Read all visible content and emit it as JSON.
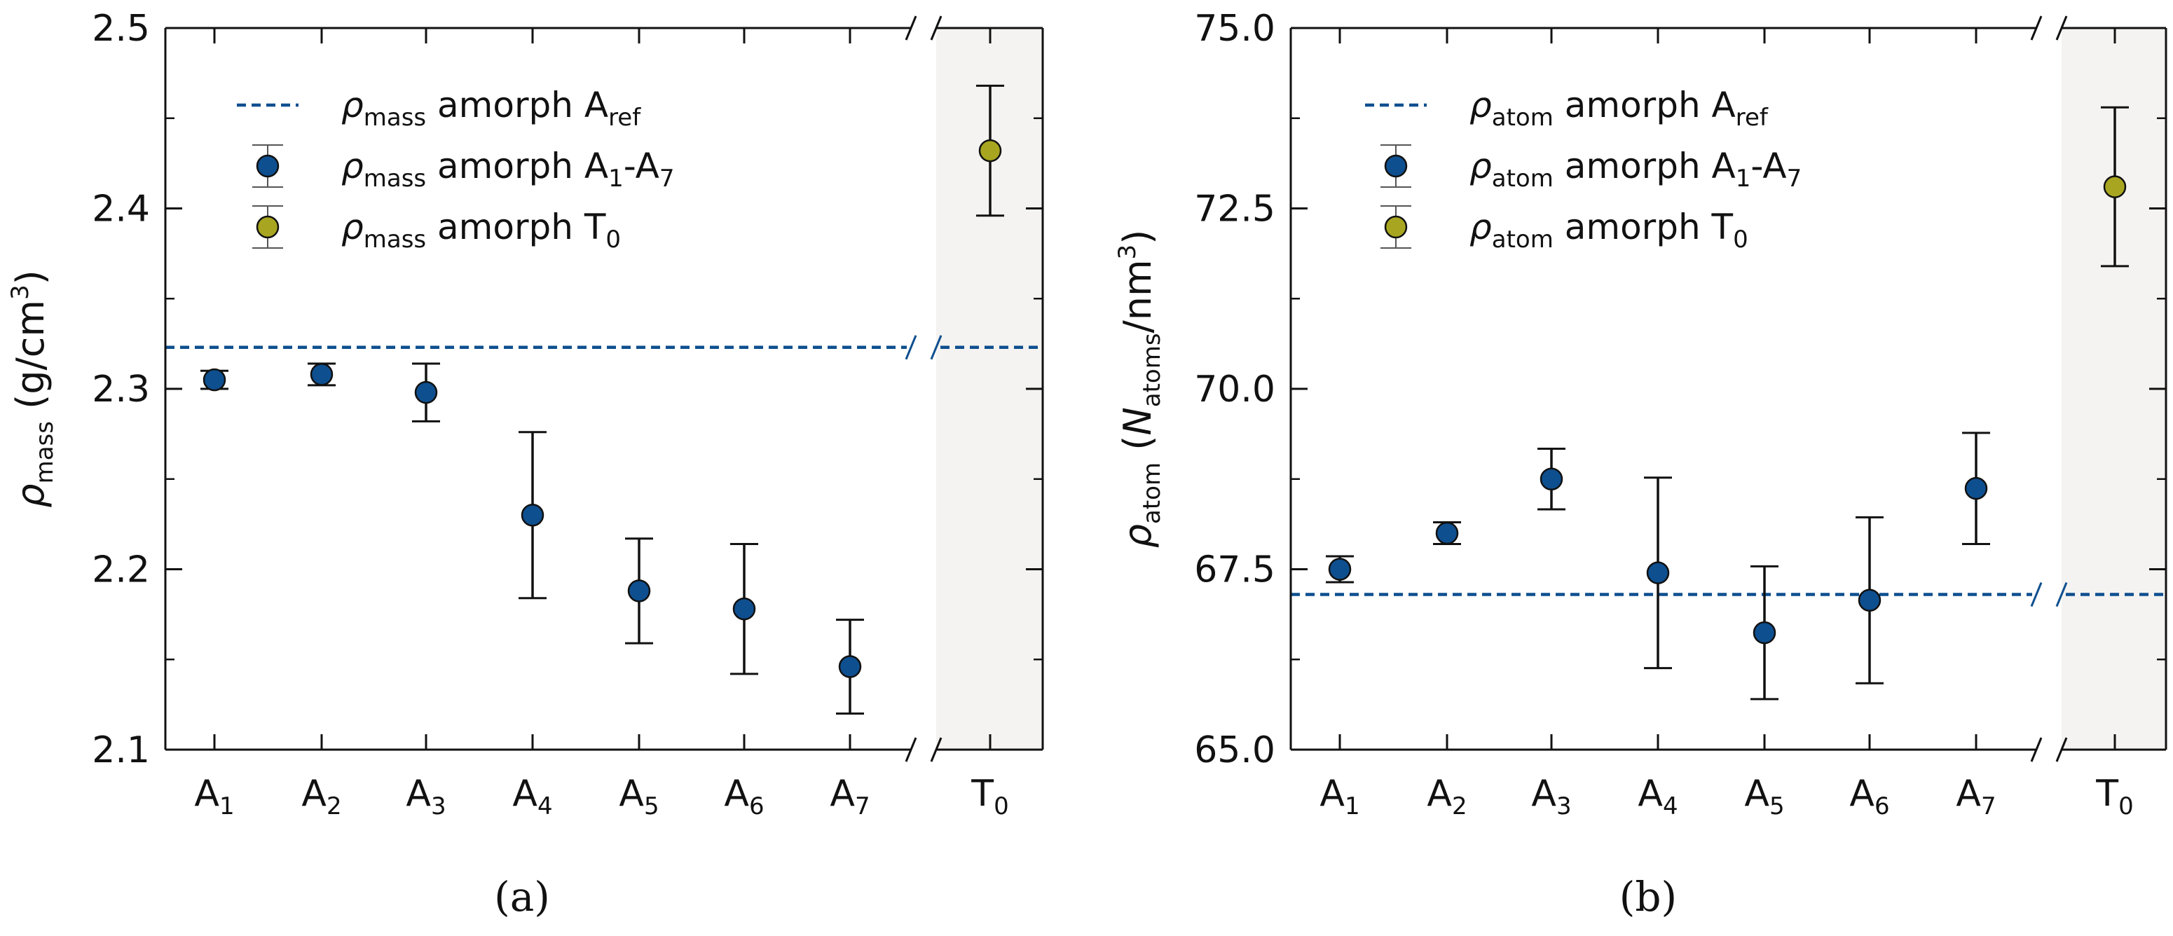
{
  "colors": {
    "series": "#0e4f8f",
    "t0": "#a8a620",
    "refline": "#0e4f8f",
    "shade": "#f4f3f1",
    "axis": "#111111",
    "errorbar": "#111111"
  },
  "chart_data": [
    {
      "type": "scatter",
      "panel": "a",
      "caption": "(a)",
      "ylabel": "ρmass (g/cm3)",
      "ylabel_parts": {
        "sym": "ρ",
        "sub": "mass",
        "unit_pre": " (g/cm",
        "sup": "3",
        "unit_post": ")"
      },
      "ylim": [
        2.1,
        2.5
      ],
      "yticks": [
        "2.1",
        "2.2",
        "2.3",
        "2.4",
        "2.5"
      ],
      "ytick_values": [
        2.1,
        2.2,
        2.3,
        2.4,
        2.5
      ],
      "categories": [
        "A1",
        "A2",
        "A3",
        "A4",
        "A5",
        "A6",
        "A7",
        "T0"
      ],
      "category_parts": [
        [
          "A",
          "1"
        ],
        [
          "A",
          "2"
        ],
        [
          "A",
          "3"
        ],
        [
          "A",
          "4"
        ],
        [
          "A",
          "5"
        ],
        [
          "A",
          "6"
        ],
        [
          "A",
          "7"
        ],
        [
          "T",
          "0"
        ]
      ],
      "series": [
        {
          "name": "ρmass amorph A1-A7",
          "x": [
            "A1",
            "A2",
            "A3",
            "A4",
            "A5",
            "A6",
            "A7"
          ],
          "values": [
            2.305,
            2.308,
            2.298,
            2.23,
            2.188,
            2.178,
            2.146
          ],
          "errors": [
            0.005,
            0.006,
            0.016,
            0.046,
            0.029,
            0.036,
            0.026
          ]
        },
        {
          "name": "ρmass amorph T0",
          "x": [
            "T0"
          ],
          "values": [
            2.432
          ],
          "errors": [
            0.036
          ]
        }
      ],
      "reference": {
        "name": "ρmass amorph Aref",
        "value": 2.323
      },
      "legend": {
        "location": "top-left",
        "entries": [
          {
            "kind": "line",
            "sym": "ρ",
            "sub": "mass",
            "text": " amorph A",
            "tsub": "ref"
          },
          {
            "kind": "point-blue",
            "sym": "ρ",
            "sub": "mass",
            "text": " amorph A",
            "tsub": "1",
            "text2": "-A",
            "tsub2": "7"
          },
          {
            "kind": "point-green",
            "sym": "ρ",
            "sub": "mass",
            "text": " amorph T",
            "tsub": "0"
          }
        ]
      }
    },
    {
      "type": "scatter",
      "panel": "b",
      "caption": "(b)",
      "ylabel": "ρatom (Natoms/nm3)",
      "ylabel_parts": {
        "sym": "ρ",
        "sub": "atom",
        "unit_pre": " (",
        "n": "N",
        "nsub": "atoms",
        "unit_mid": "/nm",
        "sup": "3",
        "unit_post": ")"
      },
      "ylim": [
        65.0,
        75.0
      ],
      "yticks": [
        "65.0",
        "67.5",
        "70.0",
        "72.5",
        "75.0"
      ],
      "ytick_values": [
        65.0,
        67.5,
        70.0,
        72.5,
        75.0
      ],
      "categories": [
        "A1",
        "A2",
        "A3",
        "A4",
        "A5",
        "A6",
        "A7",
        "T0"
      ],
      "category_parts": [
        [
          "A",
          "1"
        ],
        [
          "A",
          "2"
        ],
        [
          "A",
          "3"
        ],
        [
          "A",
          "4"
        ],
        [
          "A",
          "5"
        ],
        [
          "A",
          "6"
        ],
        [
          "A",
          "7"
        ],
        [
          "T",
          "0"
        ]
      ],
      "series": [
        {
          "name": "ρatom amorph A1-A7",
          "x": [
            "A1",
            "A2",
            "A3",
            "A4",
            "A5",
            "A6",
            "A7"
          ],
          "values": [
            67.5,
            68.0,
            68.75,
            67.45,
            66.62,
            67.07,
            68.62
          ],
          "errors": [
            0.18,
            0.15,
            0.42,
            1.32,
            0.92,
            1.15,
            0.77
          ]
        },
        {
          "name": "ρatom amorph T0",
          "x": [
            "T0"
          ],
          "values": [
            72.8
          ],
          "errors": [
            1.1
          ]
        }
      ],
      "reference": {
        "name": "ρatom amorph Aref",
        "value": 67.15
      },
      "legend": {
        "location": "top-left",
        "entries": [
          {
            "kind": "line",
            "sym": "ρ",
            "sub": "atom",
            "text": " amorph A",
            "tsub": "ref"
          },
          {
            "kind": "point-blue",
            "sym": "ρ",
            "sub": "atom",
            "text": " amorph A",
            "tsub": "1",
            "text2": "-A",
            "tsub2": "7"
          },
          {
            "kind": "point-green",
            "sym": "ρ",
            "sub": "atom",
            "text": " amorph T",
            "tsub": "0"
          }
        ]
      }
    }
  ]
}
